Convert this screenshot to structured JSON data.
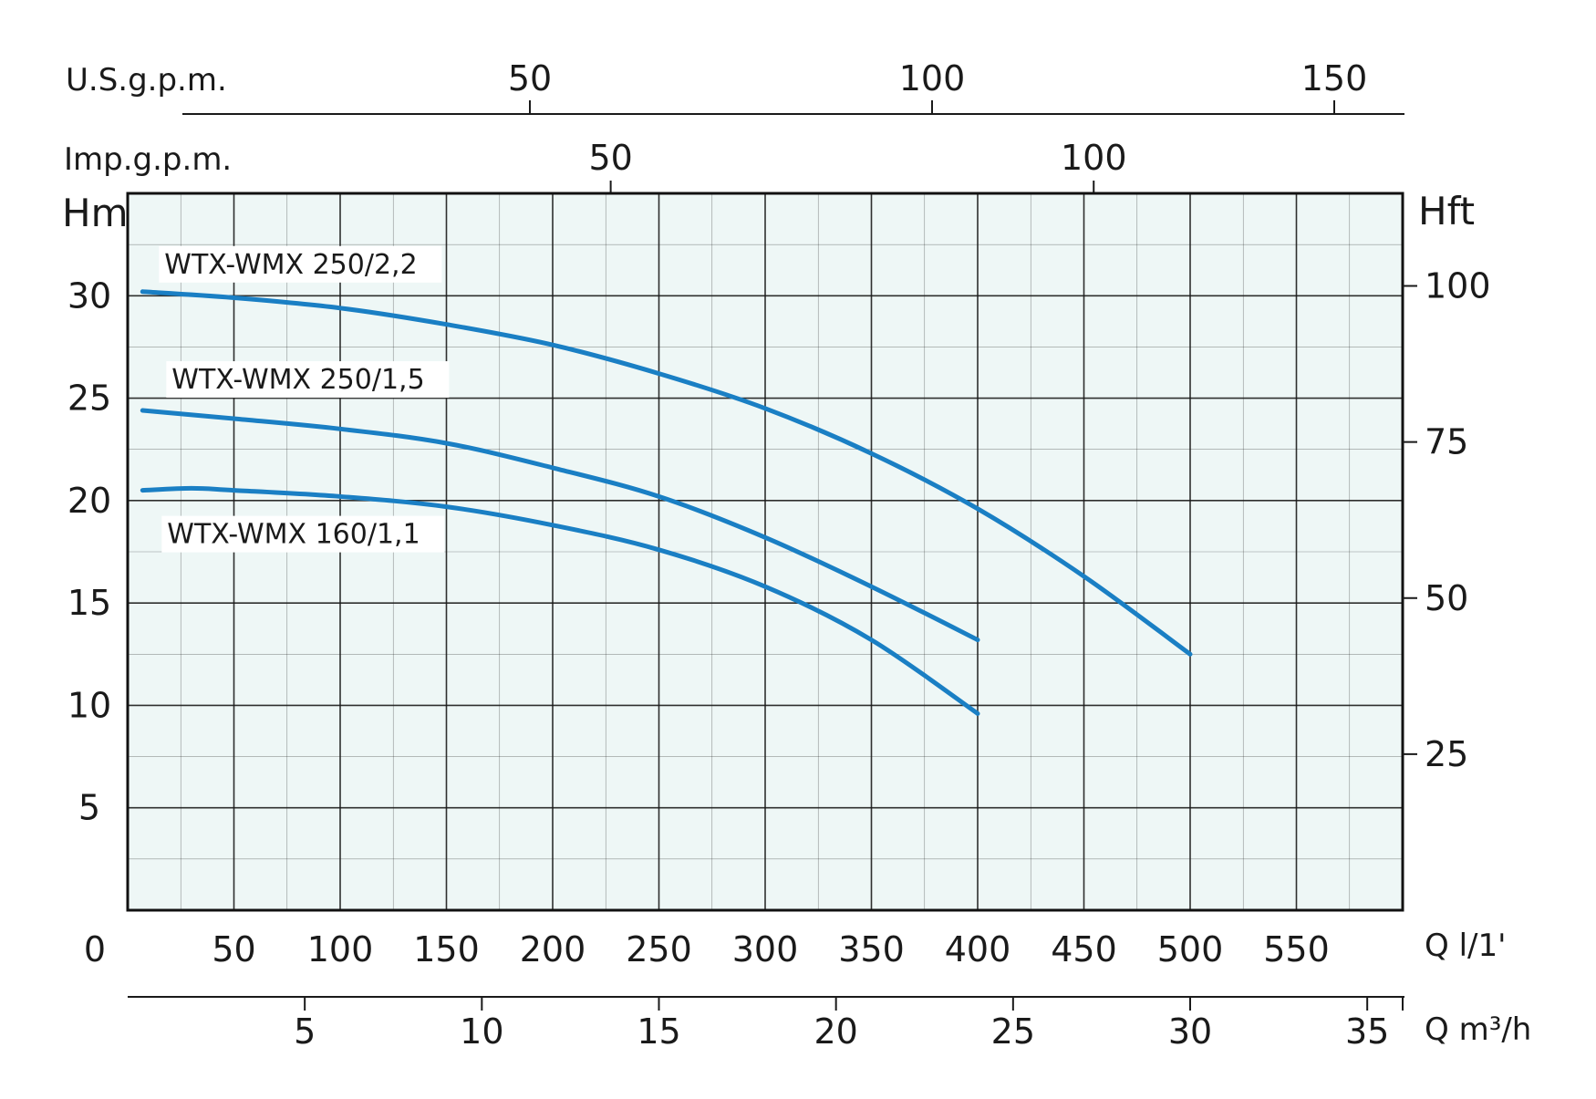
{
  "chart_data": {
    "type": "line",
    "colors": {
      "curve": "#1a7fc4",
      "plot_bg": "#eef7f6",
      "grid": "#1a1a1a"
    },
    "x": {
      "label": "Q l/1'",
      "range": [
        0,
        600
      ],
      "ticks": [
        0,
        50,
        100,
        150,
        200,
        250,
        300,
        350,
        400,
        450,
        500,
        550
      ],
      "tick_labels": [
        "0",
        "50",
        "100",
        "150",
        "200",
        "250",
        "300",
        "350",
        "400",
        "450",
        "500",
        "550"
      ]
    },
    "y": {
      "label": "Hm",
      "range": [
        0,
        35
      ],
      "ticks": [
        5,
        10,
        15,
        20,
        25,
        30
      ],
      "tick_labels": [
        "5",
        "10",
        "15",
        "20",
        "25",
        "30"
      ]
    },
    "x2_m3h": {
      "label": "Q m³/h",
      "ticks": [
        5,
        10,
        15,
        20,
        25,
        30,
        35
      ],
      "tick_labels": [
        "5",
        "10",
        "15",
        "20",
        "25",
        "30",
        "35"
      ]
    },
    "x_usgpm": {
      "label": "U.S.g.p.m.",
      "ticks": [
        50,
        100,
        150
      ],
      "tick_labels": [
        "50",
        "100",
        "150"
      ]
    },
    "x_impgpm": {
      "label": "Imp.g.p.m.",
      "ticks": [
        50,
        100
      ],
      "tick_labels": [
        "50",
        "100"
      ]
    },
    "y_right": {
      "label": "Hft",
      "ticks": [
        25,
        50,
        75,
        100
      ],
      "tick_labels": [
        "25",
        "50",
        "75",
        "100"
      ]
    },
    "grid": true,
    "series": [
      {
        "name": "WTX-WMX 250/2,2",
        "x": [
          7,
          50,
          100,
          150,
          200,
          250,
          300,
          350,
          400,
          450,
          500
        ],
        "y": [
          30.2,
          29.9,
          29.4,
          28.6,
          27.6,
          26.2,
          24.5,
          22.3,
          19.6,
          16.3,
          12.5
        ]
      },
      {
        "name": "WTX-WMX 250/1,5",
        "x": [
          7,
          50,
          100,
          150,
          200,
          250,
          300,
          350,
          400
        ],
        "y": [
          24.4,
          24.0,
          23.5,
          22.8,
          21.6,
          20.2,
          18.2,
          15.8,
          13.2
        ]
      },
      {
        "name": "WTX-WMX 160/1,1",
        "x": [
          7,
          30,
          50,
          100,
          150,
          200,
          250,
          300,
          350,
          400
        ],
        "y": [
          20.5,
          20.6,
          20.5,
          20.2,
          19.7,
          18.8,
          17.6,
          15.8,
          13.2,
          9.6
        ]
      }
    ]
  }
}
